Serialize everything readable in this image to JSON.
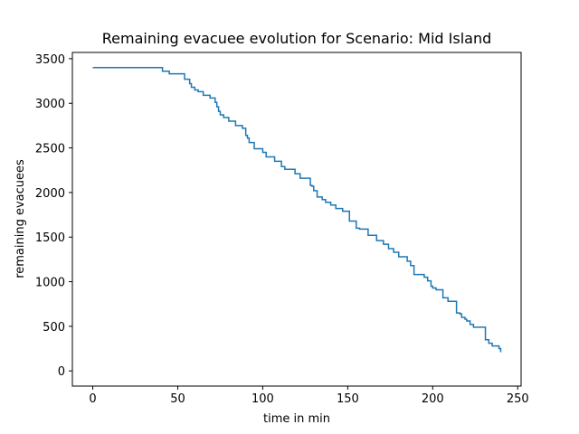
{
  "chart_data": {
    "type": "line",
    "title": "Remaining evacuee evolution for Scenario: Mid Island",
    "xlabel": "time in min",
    "ylabel": "remaining evacuees",
    "xlim": [
      -12,
      252
    ],
    "ylim": [
      -170,
      3570
    ],
    "x_ticks": [
      0,
      50,
      100,
      150,
      200,
      250
    ],
    "y_ticks": [
      0,
      500,
      1000,
      1500,
      2000,
      2500,
      3000,
      3500
    ],
    "grid": false,
    "legend": "none",
    "line_color": "#1f77b4",
    "series": [
      {
        "step": "post",
        "x": [
          0,
          41,
          45,
          54,
          57,
          58,
          60,
          62,
          65,
          69,
          72,
          73,
          74,
          75,
          77,
          80,
          84,
          88,
          90,
          91,
          92,
          95,
          100,
          102,
          107,
          111,
          113,
          119,
          122,
          128,
          129,
          130,
          132,
          135,
          137,
          140,
          143,
          147,
          151,
          155,
          157,
          162,
          167,
          171,
          174,
          177,
          180,
          185,
          187,
          189,
          195,
          197,
          199,
          200,
          202,
          206,
          209,
          214,
          216,
          217,
          219,
          220,
          222,
          224,
          231,
          233,
          235,
          239,
          240
        ],
        "y": [
          3400,
          3360,
          3330,
          3270,
          3220,
          3180,
          3150,
          3130,
          3090,
          3060,
          3010,
          2960,
          2910,
          2870,
          2840,
          2800,
          2750,
          2720,
          2640,
          2610,
          2560,
          2490,
          2450,
          2400,
          2350,
          2290,
          2260,
          2210,
          2160,
          2080,
          2070,
          2020,
          1950,
          1920,
          1890,
          1860,
          1820,
          1790,
          1680,
          1600,
          1590,
          1520,
          1460,
          1420,
          1370,
          1330,
          1280,
          1230,
          1180,
          1080,
          1050,
          1010,
          950,
          930,
          910,
          820,
          780,
          650,
          640,
          600,
          580,
          560,
          520,
          490,
          350,
          310,
          280,
          250,
          210
        ]
      }
    ]
  }
}
